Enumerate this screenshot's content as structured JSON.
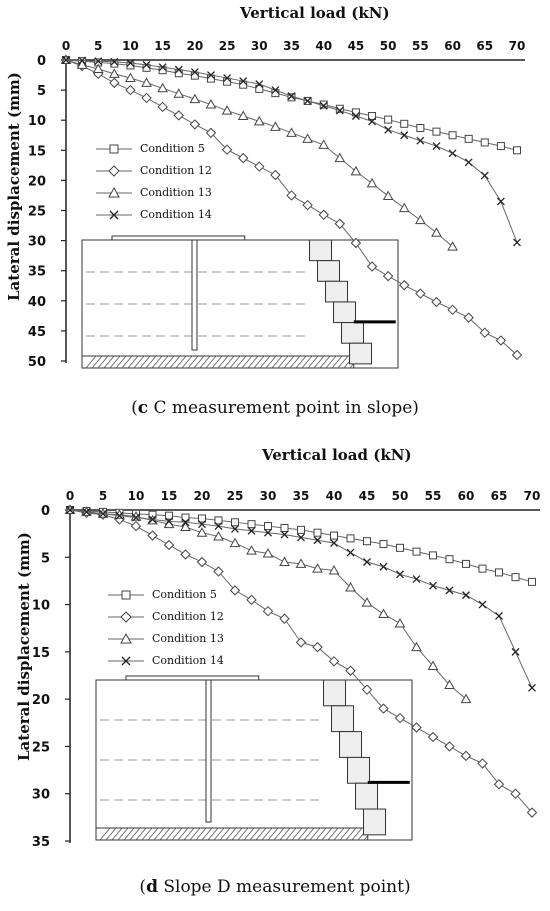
{
  "chart_data": [
    {
      "type": "line",
      "panel": "c",
      "xlabel": "Vertical load (kN)",
      "ylabel": "Lateral displacement (mm)",
      "xlim": [
        0,
        70
      ],
      "ylim": [
        0,
        50
      ],
      "xticks": [
        "0",
        "5",
        "10",
        "15",
        "20",
        "25",
        "30",
        "35",
        "40",
        "45",
        "50",
        "55",
        "60",
        "65",
        "70"
      ],
      "yticks": [
        "0",
        "5",
        "10",
        "15",
        "20",
        "25",
        "30",
        "35",
        "40",
        "45",
        "50"
      ],
      "legend_position": "middle-left",
      "caption_label": "c",
      "caption_text": " C measurement point in slope",
      "series": [
        {
          "name": "Condition 5",
          "marker": "square",
          "x": [
            0,
            2.5,
            5,
            7.5,
            10,
            12.5,
            15,
            17.5,
            20,
            22.5,
            25,
            27.5,
            30,
            32.5,
            35,
            37.5,
            40,
            42.5,
            45,
            47.5,
            50,
            52.5,
            55,
            57.5,
            60,
            62.5,
            65,
            67.5,
            70
          ],
          "y": [
            0,
            0.2,
            0.4,
            0.6,
            0.9,
            1.3,
            1.7,
            2.2,
            2.6,
            3.1,
            3.6,
            4.1,
            4.8,
            5.5,
            6.2,
            6.8,
            7.4,
            8.1,
            8.7,
            9.3,
            9.9,
            10.6,
            11.3,
            11.9,
            12.5,
            13.1,
            13.7,
            14.3,
            15.0
          ]
        },
        {
          "name": "Condition 12",
          "marker": "diamond",
          "x": [
            0,
            2.5,
            5,
            7.5,
            10,
            12.5,
            15,
            17.5,
            20,
            22.5,
            25,
            27.5,
            30,
            32.5,
            35,
            37.5,
            40,
            42.5,
            45,
            47.5,
            50,
            52.5,
            55,
            57.5,
            60,
            62.5,
            65,
            67.5,
            70
          ],
          "y": [
            0,
            1,
            2.3,
            3.8,
            5,
            6.3,
            7.8,
            9.2,
            10.7,
            12.1,
            14.9,
            16.3,
            17.7,
            19.1,
            22.5,
            24.1,
            25.7,
            27.2,
            30.4,
            34.3,
            35.9,
            37.4,
            38.8,
            40.2,
            41.5,
            42.8,
            45.3,
            46.6,
            49.0
          ]
        },
        {
          "name": "Condition 13",
          "marker": "triangle",
          "x": [
            0,
            2.5,
            5,
            7.5,
            10,
            12.5,
            15,
            17.5,
            20,
            22.5,
            25,
            27.5,
            30,
            32.5,
            35,
            37.5,
            40,
            42.5,
            45,
            47.5,
            50,
            52.5,
            55,
            57.5,
            60
          ],
          "y": [
            0,
            0.8,
            1.5,
            2.3,
            3,
            3.8,
            4.7,
            5.6,
            6.5,
            7.4,
            8.4,
            9.3,
            10.2,
            11.1,
            12.1,
            13.1,
            14.1,
            16.3,
            18.5,
            20.5,
            22.6,
            24.6,
            26.6,
            28.7,
            31.0
          ]
        },
        {
          "name": "Condition 14",
          "marker": "x",
          "x": [
            0,
            2.5,
            5,
            7.5,
            10,
            12.5,
            15,
            17.5,
            20,
            22.5,
            25,
            27.5,
            30,
            32.5,
            35,
            37.5,
            40,
            42.5,
            45,
            47.5,
            50,
            52.5,
            55,
            57.5,
            60,
            62.5,
            65,
            67.5,
            70
          ],
          "y": [
            0,
            0.1,
            0.2,
            0.3,
            0.5,
            0.8,
            1.2,
            1.6,
            2.0,
            2.5,
            3.0,
            3.5,
            4.0,
            5.0,
            6.0,
            6.8,
            7.6,
            8.4,
            9.3,
            10.2,
            11.6,
            12.5,
            13.4,
            14.3,
            15.5,
            17.0,
            19.2,
            23.5,
            30.3
          ]
        }
      ]
    },
    {
      "type": "line",
      "panel": "d",
      "xlabel": "Vertical load (kN)",
      "ylabel": "Lateral displacement (mm)",
      "xlim": [
        0,
        70
      ],
      "ylim": [
        0,
        35
      ],
      "xticks": [
        "0",
        "5",
        "10",
        "15",
        "20",
        "25",
        "30",
        "35",
        "40",
        "45",
        "50",
        "55",
        "60",
        "65",
        "70"
      ],
      "yticks": [
        "0",
        "5",
        "10",
        "15",
        "20",
        "25",
        "30",
        "35"
      ],
      "legend_position": "middle-left",
      "caption_label": "d",
      "caption_text": " Slope D measurement point",
      "series": [
        {
          "name": "Condition 5",
          "marker": "square",
          "x": [
            0,
            2.5,
            5,
            7.5,
            10,
            12.5,
            15,
            17.5,
            20,
            22.5,
            25,
            27.5,
            30,
            32.5,
            35,
            37.5,
            40,
            42.5,
            45,
            47.5,
            50,
            52.5,
            55,
            57.5,
            60,
            62.5,
            65,
            67.5,
            70
          ],
          "y": [
            0,
            0.1,
            0.2,
            0.3,
            0.4,
            0.5,
            0.6,
            0.8,
            0.9,
            1.1,
            1.3,
            1.5,
            1.7,
            1.9,
            2.1,
            2.4,
            2.7,
            3.0,
            3.3,
            3.6,
            4.0,
            4.4,
            4.8,
            5.2,
            5.7,
            6.2,
            6.6,
            7.1,
            7.6
          ]
        },
        {
          "name": "Condition 12",
          "marker": "diamond",
          "x": [
            0,
            2.5,
            5,
            7.5,
            10,
            12.5,
            15,
            17.5,
            20,
            22.5,
            25,
            27.5,
            30,
            32.5,
            35,
            37.5,
            40,
            42.5,
            45,
            47.5,
            50,
            52.5,
            55,
            57.5,
            60,
            62.5,
            65,
            67.5,
            70
          ],
          "y": [
            0,
            0.3,
            0.5,
            1.0,
            1.7,
            2.7,
            3.7,
            4.7,
            5.5,
            6.5,
            8.5,
            9.5,
            10.7,
            11.5,
            14.0,
            14.5,
            16.0,
            17.0,
            19.0,
            21.0,
            22.0,
            23.0,
            24.0,
            25.0,
            26.0,
            26.8,
            29.0,
            30.0,
            32.0
          ]
        },
        {
          "name": "Condition 13",
          "marker": "triangle",
          "x": [
            0,
            2.5,
            5,
            7.5,
            10,
            12.5,
            15,
            17.5,
            20,
            22.5,
            25,
            27.5,
            30,
            32.5,
            35,
            37.5,
            40,
            42.5,
            45,
            47.5,
            50,
            52.5,
            55,
            57.5,
            60
          ],
          "y": [
            0,
            0.2,
            0.4,
            0.5,
            0.7,
            1.1,
            1.5,
            1.8,
            2.4,
            2.8,
            3.5,
            4.3,
            4.6,
            5.5,
            5.7,
            6.2,
            6.4,
            8.2,
            9.8,
            11.0,
            12.0,
            14.5,
            16.5,
            18.5,
            20.0
          ]
        },
        {
          "name": "Condition 14",
          "marker": "x",
          "x": [
            0,
            2.5,
            5,
            7.5,
            10,
            12.5,
            15,
            17.5,
            20,
            22.5,
            25,
            27.5,
            30,
            32.5,
            35,
            37.5,
            40,
            42.5,
            45,
            47.5,
            50,
            52.5,
            55,
            57.5,
            60,
            62.5,
            65,
            67.5,
            70
          ],
          "y": [
            0,
            0.2,
            0.4,
            0.6,
            0.8,
            1.0,
            1.2,
            1.3,
            1.5,
            1.7,
            2.0,
            2.2,
            2.4,
            2.6,
            2.9,
            3.2,
            3.5,
            4.5,
            5.5,
            6.0,
            6.8,
            7.3,
            8.0,
            8.5,
            9.0,
            10.0,
            11.2,
            15.0,
            18.8
          ]
        }
      ]
    }
  ]
}
